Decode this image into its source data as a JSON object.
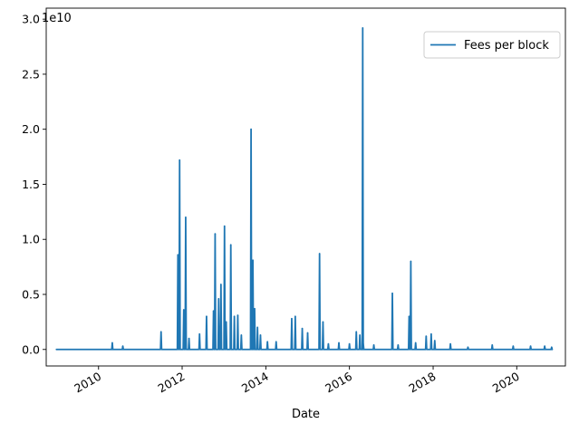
{
  "chart_data": {
    "type": "line",
    "title": "",
    "xlabel": "Date",
    "ylabel": "",
    "y_offset_label": "1e10",
    "y_scale_factor": 10000000000,
    "x_axis": "date",
    "xlim": [
      "2008-10-01",
      "2021-03-01"
    ],
    "ylim": [
      -0.15,
      3.1
    ],
    "y_ticks": [
      0.0,
      0.5,
      1.0,
      1.5,
      2.0,
      2.5,
      3.0
    ],
    "y_tick_labels": [
      "0.0",
      "0.5",
      "1.0",
      "1.5",
      "2.0",
      "2.5",
      "3.0"
    ],
    "x_ticks": [
      "2010-01-01",
      "2012-01-01",
      "2014-01-01",
      "2016-01-01",
      "2018-01-01",
      "2020-01-01"
    ],
    "x_tick_labels": [
      "2010",
      "2012",
      "2014",
      "2016",
      "2018",
      "2020"
    ],
    "grid": false,
    "legend_position": "top-right",
    "series": [
      {
        "name": "Fees per block",
        "color": "#1f77b4",
        "x": [
          "2009-01-03",
          "2010-05-01",
          "2010-08-01",
          "2011-07-01",
          "2011-11-25",
          "2011-12-10",
          "2012-01-15",
          "2012-02-01",
          "2012-03-01",
          "2012-06-01",
          "2012-08-01",
          "2012-10-01",
          "2012-10-15",
          "2012-11-15",
          "2012-12-05",
          "2013-01-05",
          "2013-01-20",
          "2013-03-01",
          "2013-04-01",
          "2013-05-01",
          "2013-06-01",
          "2013-08-25",
          "2013-09-10",
          "2013-09-25",
          "2013-10-20",
          "2013-11-15",
          "2014-01-15",
          "2014-04-01",
          "2014-08-15",
          "2014-09-15",
          "2014-11-15",
          "2015-01-01",
          "2015-04-15",
          "2015-05-15",
          "2015-07-01",
          "2015-10-01",
          "2016-01-01",
          "2016-03-01",
          "2016-04-01",
          "2016-04-26",
          "2016-05-01",
          "2016-08-01",
          "2017-01-10",
          "2017-03-01",
          "2017-06-05",
          "2017-06-20",
          "2017-08-01",
          "2017-11-01",
          "2017-12-15",
          "2018-01-15",
          "2018-06-01",
          "2018-11-01",
          "2019-06-01",
          "2019-12-01",
          "2020-05-01",
          "2020-09-01",
          "2020-11-01"
        ],
        "y": [
          0.0,
          0.06,
          0.03,
          0.16,
          0.86,
          1.72,
          0.36,
          1.2,
          0.1,
          0.14,
          0.3,
          0.35,
          1.05,
          0.46,
          0.59,
          1.12,
          0.25,
          0.95,
          0.3,
          0.31,
          0.13,
          2.0,
          0.81,
          0.37,
          0.2,
          0.13,
          0.07,
          0.07,
          0.28,
          0.3,
          0.19,
          0.15,
          0.87,
          0.25,
          0.05,
          0.06,
          0.05,
          0.16,
          0.13,
          2.92,
          0.05,
          0.04,
          0.51,
          0.04,
          0.3,
          0.8,
          0.06,
          0.12,
          0.14,
          0.08,
          0.05,
          0.02,
          0.04,
          0.03,
          0.03,
          0.03,
          0.02
        ]
      }
    ]
  }
}
